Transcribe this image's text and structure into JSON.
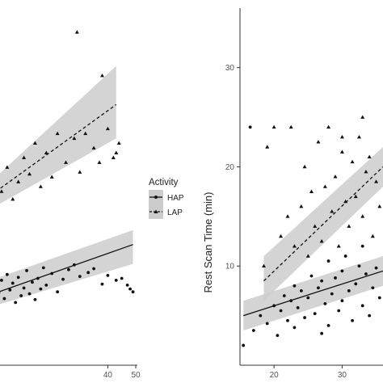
{
  "chart_data": [
    {
      "type": "scatter",
      "xlim": [
        0,
        50
      ],
      "ylim": [
        0,
        37
      ],
      "x_ticks": [
        "40",
        "50"
      ],
      "x_tick_values": [
        40,
        50
      ],
      "grid": false,
      "series": [
        {
          "name": "HAP",
          "marker": "circle",
          "line": "solid",
          "points": [
            [
              0,
              8.2
            ],
            [
              1,
              7.5
            ],
            [
              2,
              8.8
            ],
            [
              3,
              6.9
            ],
            [
              4,
              9.4
            ],
            [
              5,
              7.8
            ],
            [
              6,
              8.5
            ],
            [
              7,
              6.5
            ],
            [
              8,
              9.1
            ],
            [
              9,
              7.2
            ],
            [
              10,
              8.0
            ],
            [
              11,
              9.8
            ],
            [
              12,
              7.4
            ],
            [
              13,
              8.6
            ],
            [
              14,
              6.8
            ],
            [
              15,
              9.0
            ],
            [
              16,
              7.9
            ],
            [
              17,
              10.1
            ],
            [
              18,
              8.3
            ],
            [
              20,
              9.5
            ],
            [
              22,
              7.6
            ],
            [
              24,
              8.9
            ],
            [
              26,
              9.9
            ],
            [
              28,
              10.4
            ],
            [
              30,
              9.2
            ],
            [
              33,
              9.6
            ],
            [
              35,
              10.0
            ],
            [
              38,
              8.4
            ],
            [
              40,
              9.3
            ],
            [
              43,
              8.8
            ],
            [
              45,
              9.0
            ],
            [
              47,
              8.3
            ],
            [
              48,
              7.9
            ],
            [
              49,
              7.6
            ]
          ],
          "fit": [
            [
              0,
              7.5
            ],
            [
              49,
              12.5
            ]
          ],
          "ci_upper": [
            [
              0,
              9.0
            ],
            [
              49,
              14.0
            ]
          ],
          "ci_lower": [
            [
              0,
              6.2
            ],
            [
              49,
              10.5
            ]
          ]
        },
        {
          "name": "LAP",
          "marker": "triangle",
          "line": "dashed",
          "points": [
            [
              2,
              18.0
            ],
            [
              4,
              20.5
            ],
            [
              6,
              17.2
            ],
            [
              8,
              19.0
            ],
            [
              10,
              21.5
            ],
            [
              12,
              19.8
            ],
            [
              14,
              23.0
            ],
            [
              16,
              18.5
            ],
            [
              18,
              22.0
            ],
            [
              20,
              19.5
            ],
            [
              22,
              24.0
            ],
            [
              25,
              21.0
            ],
            [
              28,
              23.5
            ],
            [
              30,
              20.0
            ],
            [
              32,
              24.0
            ],
            [
              35,
              22.5
            ],
            [
              37,
              21.0
            ],
            [
              38,
              30.0
            ],
            [
              40,
              24.5
            ],
            [
              42,
              21.5
            ],
            [
              43,
              22.0
            ],
            [
              44,
              23.0
            ],
            [
              29,
              34.5
            ]
          ],
          "fit": [
            [
              0,
              18.0
            ],
            [
              43,
              27.0
            ]
          ],
          "ci_upper": [
            [
              0,
              19.5
            ],
            [
              43,
              31.0
            ]
          ],
          "ci_lower": [
            [
              0,
              16.5
            ],
            [
              43,
              23.5
            ]
          ]
        }
      ]
    },
    {
      "type": "scatter",
      "ylabel": "Rest Scan Time (min)",
      "xlim": [
        15,
        36
      ],
      "ylim": [
        0,
        36
      ],
      "x_ticks": [
        "20",
        "30"
      ],
      "x_tick_values": [
        20,
        30
      ],
      "y_ticks": [
        "10",
        "20",
        "30"
      ],
      "y_tick_values": [
        10,
        20,
        30
      ],
      "grid": false,
      "series": [
        {
          "name": "HAP",
          "marker": "circle",
          "line": "solid",
          "points": [
            [
              15.5,
              2.0
            ],
            [
              17,
              3.5
            ],
            [
              18,
              5.0
            ],
            [
              19,
              4.2
            ],
            [
              20,
              6.0
            ],
            [
              20.5,
              3.0
            ],
            [
              21,
              5.5
            ],
            [
              21.5,
              7.0
            ],
            [
              22,
              4.5
            ],
            [
              22.5,
              6.5
            ],
            [
              23,
              8.0
            ],
            [
              23,
              3.8
            ],
            [
              23.5,
              5.8
            ],
            [
              24,
              7.5
            ],
            [
              24.5,
              4.8
            ],
            [
              25,
              6.8
            ],
            [
              25.5,
              9.0
            ],
            [
              26,
              5.2
            ],
            [
              26.5,
              7.8
            ],
            [
              27,
              8.5
            ],
            [
              27,
              3.2
            ],
            [
              27.5,
              6.2
            ],
            [
              28,
              10.5
            ],
            [
              28,
              4.0
            ],
            [
              28.5,
              7.2
            ],
            [
              29,
              8.8
            ],
            [
              29.5,
              5.5
            ],
            [
              30,
              9.5
            ],
            [
              30,
              6.5
            ],
            [
              30.5,
              11.0
            ],
            [
              31,
              7.5
            ],
            [
              31.5,
              4.5
            ],
            [
              32,
              8.2
            ],
            [
              32.5,
              10.0
            ],
            [
              33,
              6.0
            ],
            [
              33,
              12.0
            ],
            [
              33.5,
              9.2
            ],
            [
              34,
              5.0
            ],
            [
              34.5,
              7.8
            ],
            [
              35,
              9.8
            ],
            [
              35.5,
              6.8
            ],
            [
              16.5,
              24.0
            ]
          ],
          "fit": [
            [
              15.5,
              5.0
            ],
            [
              36,
              9.5
            ]
          ],
          "ci_upper": [
            [
              15.5,
              6.5
            ],
            [
              36,
              11.0
            ]
          ],
          "ci_lower": [
            [
              15.5,
              3.5
            ],
            [
              36,
              8.0
            ]
          ]
        },
        {
          "name": "LAP",
          "marker": "triangle",
          "line": "dashed",
          "points": [
            [
              18.5,
              10.0
            ],
            [
              19,
              22.0
            ],
            [
              20,
              24.0
            ],
            [
              21,
              13.0
            ],
            [
              22,
              15.0
            ],
            [
              22.5,
              24.0
            ],
            [
              23,
              12.0
            ],
            [
              24,
              16.0
            ],
            [
              24.5,
              20.0
            ],
            [
              25,
              11.0
            ],
            [
              25.5,
              17.5
            ],
            [
              26,
              14.0
            ],
            [
              26.5,
              22.5
            ],
            [
              27,
              12.5
            ],
            [
              27.5,
              18.0
            ],
            [
              28,
              24.0
            ],
            [
              28.5,
              15.5
            ],
            [
              29,
              19.0
            ],
            [
              29.5,
              12.0
            ],
            [
              30,
              21.5
            ],
            [
              30.5,
              16.5
            ],
            [
              31,
              14.0
            ],
            [
              31.5,
              20.5
            ],
            [
              32,
              17.0
            ],
            [
              32.5,
              23.0
            ],
            [
              33,
              15.0
            ],
            [
              33.5,
              19.5
            ],
            [
              34,
              21.0
            ],
            [
              34.5,
              13.0
            ],
            [
              35,
              18.5
            ],
            [
              35.5,
              16.0
            ],
            [
              33,
              25.0
            ],
            [
              30,
              23.0
            ]
          ],
          "fit": [
            [
              18.5,
              8.5
            ],
            [
              36,
              20.0
            ]
          ],
          "ci_upper": [
            [
              18.5,
              11.0
            ],
            [
              36,
              22.0
            ]
          ],
          "ci_lower": [
            [
              18.5,
              6.5
            ],
            [
              36,
              18.0
            ]
          ]
        }
      ]
    }
  ],
  "legend": {
    "title": "Activity",
    "items": [
      {
        "label": "HAP",
        "line": "solid",
        "marker": "circle"
      },
      {
        "label": "LAP",
        "line": "dashed",
        "marker": "triangle"
      }
    ]
  },
  "colors": {
    "points": "#111111",
    "fit_line": "#111111",
    "ci_band": "#cccccc",
    "axis": "#333333",
    "tick_text": "#555555"
  }
}
